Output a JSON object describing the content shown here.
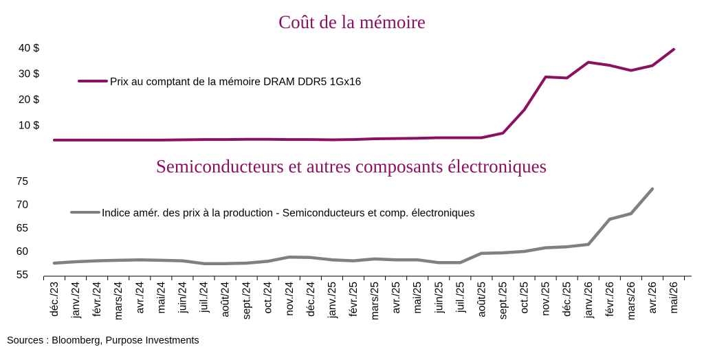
{
  "source": "Sources : Bloomberg, Purpose Investments",
  "chart_data": [
    {
      "type": "line",
      "title": "Coût de la mémoire",
      "xlabel": "",
      "ylabel": "",
      "ylim": [
        0,
        40
      ],
      "yticks": [
        10,
        20,
        30,
        40
      ],
      "ytick_labels": [
        "10 $",
        "20 $",
        "30 $",
        "40 $"
      ],
      "legend_position": "top-left",
      "colors": [
        "#8b1060"
      ],
      "x": [
        "déc./23",
        "janv./24",
        "févr./24",
        "mars/24",
        "avr./24",
        "mai/24",
        "juin/24",
        "juil./24",
        "août/24",
        "sept./24",
        "oct./24",
        "nov./24",
        "déc./24",
        "janv./25",
        "févr./25",
        "mars/25",
        "avr./25",
        "mai/25",
        "juin/25",
        "juil./25",
        "août/25",
        "sept./25",
        "oct./25",
        "nov./25",
        "déc./25",
        "janv./26",
        "févr./26",
        "mars/26",
        "avr./26",
        "mai/26"
      ],
      "series": [
        {
          "name": "Prix au comptant de la mémoire DRAM DDR5 1Gx16",
          "values": [
            4.3,
            4.3,
            4.3,
            4.3,
            4.3,
            4.3,
            4.4,
            4.5,
            4.5,
            4.6,
            4.6,
            4.5,
            4.5,
            4.4,
            4.5,
            4.8,
            4.9,
            5.0,
            5.2,
            5.2,
            5.2,
            7.0,
            16.0,
            28.8,
            28.4,
            34.5,
            33.3,
            31.3,
            33.2,
            39.5
          ]
        }
      ]
    },
    {
      "type": "line",
      "title": "Semiconducteurs et autres composants électroniques",
      "xlabel": "",
      "ylabel": "",
      "ylim": [
        55,
        75
      ],
      "yticks": [
        55,
        60,
        65,
        70,
        75
      ],
      "ytick_labels": [
        "55",
        "60",
        "65",
        "70",
        "75"
      ],
      "legend_position": "top-left",
      "colors": [
        "#808080"
      ],
      "x": [
        "déc./23",
        "janv./24",
        "févr./24",
        "mars/24",
        "avr./24",
        "mai/24",
        "juin/24",
        "juil./24",
        "août/24",
        "sept./24",
        "oct./24",
        "nov./24",
        "déc./24",
        "janv./25",
        "févr./25",
        "mars/25",
        "avr./25",
        "mai/25",
        "juin/25",
        "juil./25",
        "août/25",
        "sept./25",
        "oct./25",
        "nov./25",
        "déc./25",
        "janv./26",
        "févr./26",
        "mars/26",
        "avr./26",
        "mai/26"
      ],
      "series": [
        {
          "name": "Indice amér. des prix à la production - Semiconducteurs et comp. électroniques",
          "values": [
            57.5,
            57.8,
            58.0,
            58.1,
            58.2,
            58.1,
            58.0,
            57.4,
            57.4,
            57.5,
            57.9,
            58.8,
            58.7,
            58.2,
            58.0,
            58.4,
            58.2,
            58.2,
            57.6,
            57.6,
            59.6,
            59.7,
            60.0,
            60.8,
            61.0,
            61.5,
            66.9,
            68.1,
            73.4,
            null
          ]
        }
      ]
    }
  ]
}
